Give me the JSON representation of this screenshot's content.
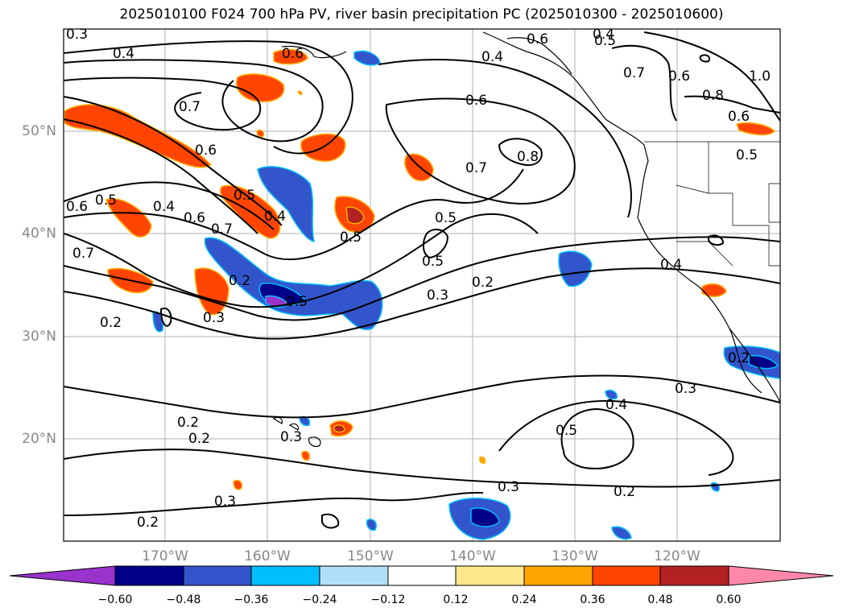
{
  "title": "2025010100 F024 700 hPa PV, river basin precipitation PC (2025010300 - 2025010600)",
  "lat_labels": [
    "50°N",
    "40°N",
    "30°N",
    "20°N"
  ],
  "lon_labels": [
    "170°W",
    "160°W",
    "150°W",
    "140°W",
    "130°W",
    "120°W"
  ],
  "contour_labels": [
    "0.4",
    "0.3",
    "0.7",
    "0.6",
    "0.5",
    "0.4",
    "0.6",
    "0.7",
    "0.5",
    "0.6",
    "0.4",
    "0.6",
    "0.7",
    "0.5",
    "0.4",
    "0.5",
    "0.7",
    "0.2",
    "0.3",
    "0.2",
    "0.5",
    "0.3",
    "0.2",
    "0.5",
    "0.7",
    "0.8",
    "0.6",
    "0.4",
    "0.6",
    "0.5",
    "0.8",
    "0.6",
    "1.0",
    "0.5",
    "0.4",
    "0.2",
    "0.3",
    "0.4",
    "0.5",
    "0.3",
    "0.2",
    "0.2",
    "0.3",
    "0.3",
    "0.2",
    "0.2",
    "0.6"
  ],
  "colorbar": {
    "ticks": [
      "−0.60",
      "−0.48",
      "−0.36",
      "−0.24",
      "−0.12",
      "0.12",
      "0.24",
      "0.36",
      "0.48",
      "0.60"
    ],
    "colors": [
      "#9933cc",
      "#00008b",
      "#3355cc",
      "#00bfff",
      "#b0e0f8",
      "#ffffff",
      "#ffe88a",
      "#ffa500",
      "#ff4500",
      "#b22222",
      "#ff88aa"
    ]
  }
}
